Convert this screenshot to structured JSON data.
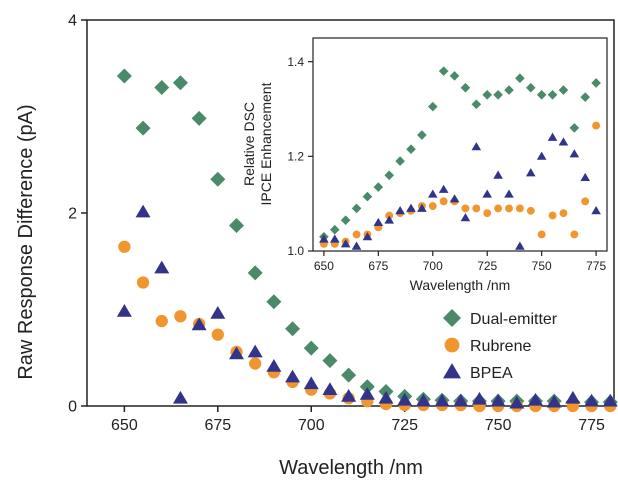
{
  "colors": {
    "dual_emitter": "#4a8a6a",
    "rubrene": "#f0962e",
    "bpea": "#33338a",
    "axis": "#222222"
  },
  "chart_data": [
    {
      "id": "main",
      "type": "scatter",
      "xlabel": "Wavelength /nm",
      "ylabel": "Raw Response Difference (pA)",
      "xlim": [
        640,
        781
      ],
      "ylim": [
        0,
        4
      ],
      "xticks": [
        650,
        675,
        700,
        725,
        750,
        775
      ],
      "yticks": [
        0,
        2,
        4
      ],
      "legend_position": "bottom-right",
      "series": [
        {
          "name": "Dual-emitter",
          "marker": "diamond",
          "color": "#4a8a6a",
          "points": [
            [
              650,
              3.42
            ],
            [
              655,
              2.88
            ],
            [
              660,
              3.3
            ],
            [
              665,
              3.35
            ],
            [
              670,
              2.98
            ],
            [
              675,
              2.35
            ],
            [
              680,
              1.87
            ],
            [
              685,
              1.38
            ],
            [
              690,
              1.08
            ],
            [
              695,
              0.8
            ],
            [
              700,
              0.6
            ],
            [
              705,
              0.47
            ],
            [
              710,
              0.32
            ],
            [
              715,
              0.2
            ],
            [
              720,
              0.15
            ],
            [
              725,
              0.1
            ],
            [
              730,
              0.07
            ],
            [
              735,
              0.06
            ],
            [
              740,
              0.05
            ],
            [
              745,
              0.05
            ],
            [
              750,
              0.05
            ],
            [
              755,
              0.05
            ],
            [
              760,
              0.05
            ],
            [
              765,
              0.05
            ],
            [
              770,
              0.04
            ],
            [
              775,
              0.04
            ],
            [
              780,
              0.04
            ]
          ]
        },
        {
          "name": "Rubrene",
          "marker": "circle",
          "color": "#f0962e",
          "points": [
            [
              650,
              1.65
            ],
            [
              655,
              1.28
            ],
            [
              660,
              0.88
            ],
            [
              665,
              0.93
            ],
            [
              670,
              0.85
            ],
            [
              675,
              0.74
            ],
            [
              680,
              0.56
            ],
            [
              685,
              0.44
            ],
            [
              690,
              0.35
            ],
            [
              695,
              0.25
            ],
            [
              700,
              0.17
            ],
            [
              705,
              0.13
            ],
            [
              710,
              0.08
            ],
            [
              715,
              0.05
            ],
            [
              720,
              0.02
            ],
            [
              725,
              0.01
            ],
            [
              730,
              0.01
            ],
            [
              735,
              0.01
            ],
            [
              740,
              0.01
            ],
            [
              745,
              0.0
            ],
            [
              750,
              0.0
            ],
            [
              755,
              0.0
            ],
            [
              760,
              0.0
            ],
            [
              765,
              0.0
            ],
            [
              770,
              0.0
            ],
            [
              775,
              0.0
            ],
            [
              780,
              0.0
            ]
          ]
        },
        {
          "name": "BPEA",
          "marker": "triangle",
          "color": "#33338a",
          "points": [
            [
              650,
              0.98
            ],
            [
              655,
              2.01
            ],
            [
              660,
              1.43
            ],
            [
              665,
              0.08
            ],
            [
              670,
              0.84
            ],
            [
              675,
              0.96
            ],
            [
              680,
              0.54
            ],
            [
              685,
              0.56
            ],
            [
              690,
              0.41
            ],
            [
              695,
              0.3
            ],
            [
              700,
              0.23
            ],
            [
              705,
              0.17
            ],
            [
              710,
              0.1
            ],
            [
              715,
              0.12
            ],
            [
              720,
              0.08
            ],
            [
              725,
              0.06
            ],
            [
              730,
              0.05
            ],
            [
              735,
              0.05
            ],
            [
              740,
              0.05
            ],
            [
              745,
              0.07
            ],
            [
              750,
              0.05
            ],
            [
              755,
              0.03
            ],
            [
              760,
              0.06
            ],
            [
              765,
              0.04
            ],
            [
              770,
              0.08
            ],
            [
              775,
              0.05
            ],
            [
              780,
              0.05
            ]
          ]
        }
      ]
    },
    {
      "id": "inset",
      "type": "scatter",
      "xlabel": "Wavelength /nm",
      "ylabel": [
        "Relative DSC",
        "IPCE Enhancement"
      ],
      "xlim": [
        645,
        780
      ],
      "ylim": [
        1.0,
        1.45
      ],
      "xticks": [
        650,
        675,
        700,
        725,
        750,
        775
      ],
      "yticks": [
        1.0,
        1.2,
        1.4
      ],
      "series": [
        {
          "name": "Dual-emitter",
          "marker": "diamond",
          "color": "#4a8a6a",
          "points": [
            [
              650,
              1.03
            ],
            [
              655,
              1.045
            ],
            [
              660,
              1.065
            ],
            [
              665,
              1.09
            ],
            [
              670,
              1.115
            ],
            [
              675,
              1.135
            ],
            [
              680,
              1.16
            ],
            [
              685,
              1.19
            ],
            [
              690,
              1.215
            ],
            [
              695,
              1.245
            ],
            [
              700,
              1.305
            ],
            [
              705,
              1.38
            ],
            [
              710,
              1.37
            ],
            [
              715,
              1.345
            ],
            [
              720,
              1.31
            ],
            [
              725,
              1.33
            ],
            [
              730,
              1.33
            ],
            [
              735,
              1.34
            ],
            [
              740,
              1.365
            ],
            [
              745,
              1.345
            ],
            [
              750,
              1.33
            ],
            [
              755,
              1.33
            ],
            [
              760,
              1.34
            ],
            [
              765,
              1.26
            ],
            [
              770,
              1.325
            ],
            [
              775,
              1.355
            ]
          ]
        },
        {
          "name": "Rubrene",
          "marker": "circle",
          "color": "#f0962e",
          "points": [
            [
              650,
              1.015
            ],
            [
              655,
              1.015
            ],
            [
              660,
              1.02
            ],
            [
              665,
              1.035
            ],
            [
              670,
              1.035
            ],
            [
              675,
              1.05
            ],
            [
              680,
              1.075
            ],
            [
              685,
              1.08
            ],
            [
              690,
              1.085
            ],
            [
              695,
              1.095
            ],
            [
              700,
              1.095
            ],
            [
              705,
              1.105
            ],
            [
              710,
              1.105
            ],
            [
              715,
              1.09
            ],
            [
              720,
              1.09
            ],
            [
              725,
              1.08
            ],
            [
              730,
              1.09
            ],
            [
              735,
              1.09
            ],
            [
              740,
              1.09
            ],
            [
              745,
              1.085
            ],
            [
              750,
              1.035
            ],
            [
              755,
              1.075
            ],
            [
              760,
              1.08
            ],
            [
              765,
              1.035
            ],
            [
              770,
              1.105
            ],
            [
              775,
              1.265
            ]
          ]
        },
        {
          "name": "BPEA",
          "marker": "triangle",
          "color": "#33338a",
          "points": [
            [
              650,
              1.025
            ],
            [
              655,
              1.025
            ],
            [
              660,
              1.015
            ],
            [
              665,
              1.01
            ],
            [
              670,
              1.03
            ],
            [
              675,
              1.06
            ],
            [
              680,
              1.065
            ],
            [
              685,
              1.085
            ],
            [
              690,
              1.09
            ],
            [
              695,
              1.09
            ],
            [
              700,
              1.12
            ],
            [
              705,
              1.13
            ],
            [
              710,
              1.11
            ],
            [
              715,
              1.07
            ],
            [
              720,
              1.22
            ],
            [
              725,
              1.12
            ],
            [
              730,
              1.16
            ],
            [
              735,
              1.12
            ],
            [
              740,
              1.01
            ],
            [
              745,
              1.165
            ],
            [
              750,
              1.2
            ],
            [
              755,
              1.24
            ],
            [
              760,
              1.23
            ],
            [
              765,
              1.205
            ],
            [
              770,
              1.155
            ],
            [
              775,
              1.085
            ]
          ]
        }
      ]
    }
  ]
}
